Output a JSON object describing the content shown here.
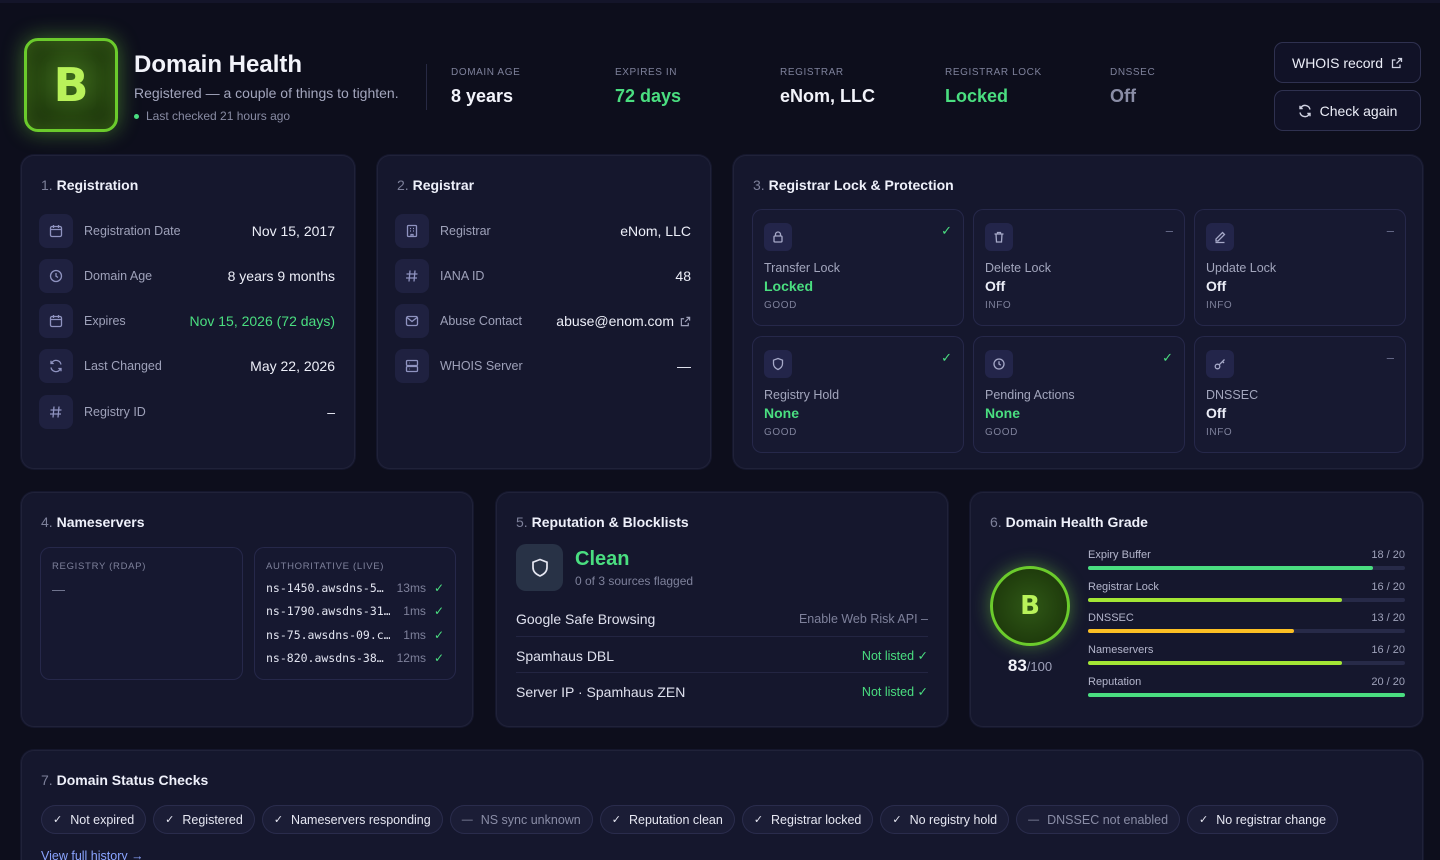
{
  "header": {
    "grade": "B",
    "title": "Domain Health",
    "subtitle": "Registered — a couple of things to tighten.",
    "last_checked": "Last checked 21 hours ago",
    "stats": [
      {
        "label": "DOMAIN AGE",
        "value": "8 years"
      },
      {
        "label": "EXPIRES IN",
        "value": "72 days"
      },
      {
        "label": "REGISTRAR",
        "value": "eNom, LLC"
      },
      {
        "label": "REGISTRAR LOCK",
        "value": "Locked"
      },
      {
        "label": "DNSSEC",
        "value": "Off"
      }
    ],
    "whois_button": "WHOIS record",
    "check_button": "Check again"
  },
  "registration": {
    "num": "1.",
    "title": "Registration",
    "rows": [
      {
        "label": "Registration Date",
        "value": "Nov 15, 2017",
        "icon": "calendar-icon"
      },
      {
        "label": "Domain Age",
        "value": "8 years 9 months",
        "icon": "clock-icon"
      },
      {
        "label": "Expires",
        "value": "Nov 15, 2026 (72 days)",
        "icon": "calendar-icon"
      },
      {
        "label": "Last Changed",
        "value": "May 22, 2026",
        "icon": "refresh-icon"
      },
      {
        "label": "Registry ID",
        "value": "–",
        "icon": "hash-icon"
      }
    ]
  },
  "registrar": {
    "num": "2.",
    "title": "Registrar",
    "rows": [
      {
        "label": "Registrar",
        "value": "eNom, LLC",
        "icon": "building-icon"
      },
      {
        "label": "IANA ID",
        "value": "48",
        "icon": "hash-icon"
      },
      {
        "label": "Abuse Contact",
        "value": "abuse@enom.com",
        "icon": "mail-icon"
      },
      {
        "label": "WHOIS Server",
        "value": "—",
        "icon": "server-icon"
      }
    ]
  },
  "protection": {
    "num": "3.",
    "title": "Registrar Lock & Protection",
    "tiles": [
      {
        "label": "Transfer Lock",
        "value": "Locked",
        "status": "GOOD",
        "mark": "✓"
      },
      {
        "label": "Delete Lock",
        "value": "Off",
        "status": "INFO",
        "mark": "–"
      },
      {
        "label": "Update Lock",
        "value": "Off",
        "status": "INFO",
        "mark": "–"
      },
      {
        "label": "Registry Hold",
        "value": "None",
        "status": "GOOD",
        "mark": "✓"
      },
      {
        "label": "Pending Actions",
        "value": "None",
        "status": "GOOD",
        "mark": "✓"
      },
      {
        "label": "DNSSEC",
        "value": "Off",
        "status": "INFO",
        "mark": "–"
      }
    ]
  },
  "nameservers": {
    "num": "4.",
    "title": "Nameservers",
    "registry_header": "REGISTRY (RDAP)",
    "registry_value": "—",
    "live_header": "AUTHORITATIVE (LIVE)",
    "live": [
      {
        "name": "ns-1450.awsdns-5…",
        "ms": "13ms"
      },
      {
        "name": "ns-1790.awsdns-31…",
        "ms": "1ms"
      },
      {
        "name": "ns-75.awsdns-09.c…",
        "ms": "1ms"
      },
      {
        "name": "ns-820.awsdns-38…",
        "ms": "12ms"
      }
    ]
  },
  "reputation": {
    "num": "5.",
    "title": "Reputation & Blocklists",
    "status": "Clean",
    "sources": "0 of 3 sources flagged",
    "rows": [
      {
        "label": "Google Safe Browsing",
        "value": "Enable Web Risk API",
        "mark": "–"
      },
      {
        "label": "Spamhaus DBL",
        "value": "Not listed",
        "mark": "✓"
      },
      {
        "label": "Server IP · Spamhaus ZEN",
        "value": "Not listed",
        "mark": "✓"
      }
    ]
  },
  "grade": {
    "num": "6.",
    "title": "Domain Health Grade",
    "letter": "B",
    "score": "83",
    "max": "/100",
    "bars": [
      {
        "label": "Expiry Buffer",
        "score": "18 / 20",
        "value": 18,
        "max": 20,
        "color": "#4ade80"
      },
      {
        "label": "Registrar Lock",
        "score": "16 / 20",
        "value": 16,
        "max": 20,
        "color": "#a3e635"
      },
      {
        "label": "DNSSEC",
        "score": "13 / 20",
        "value": 13,
        "max": 20,
        "color": "#fbbf24"
      },
      {
        "label": "Nameservers",
        "score": "16 / 20",
        "value": 16,
        "max": 20,
        "color": "#a3e635"
      },
      {
        "label": "Reputation",
        "score": "20 / 20",
        "value": 20,
        "max": 20,
        "color": "#4ade80"
      }
    ]
  },
  "status_checks": {
    "num": "7.",
    "title": "Domain Status Checks",
    "chips": [
      {
        "label": "Not expired",
        "mark": "✓"
      },
      {
        "label": "Registered",
        "mark": "✓"
      },
      {
        "label": "Nameservers responding",
        "mark": "✓"
      },
      {
        "label": "NS sync unknown",
        "mark": "—"
      },
      {
        "label": "Reputation clean",
        "mark": "✓"
      },
      {
        "label": "Registrar locked",
        "mark": "✓"
      },
      {
        "label": "No registry hold",
        "mark": "✓"
      },
      {
        "label": "DNSSEC not enabled",
        "mark": "—"
      },
      {
        "label": "No registrar change",
        "mark": "✓"
      }
    ],
    "history_link": "View full history →"
  }
}
